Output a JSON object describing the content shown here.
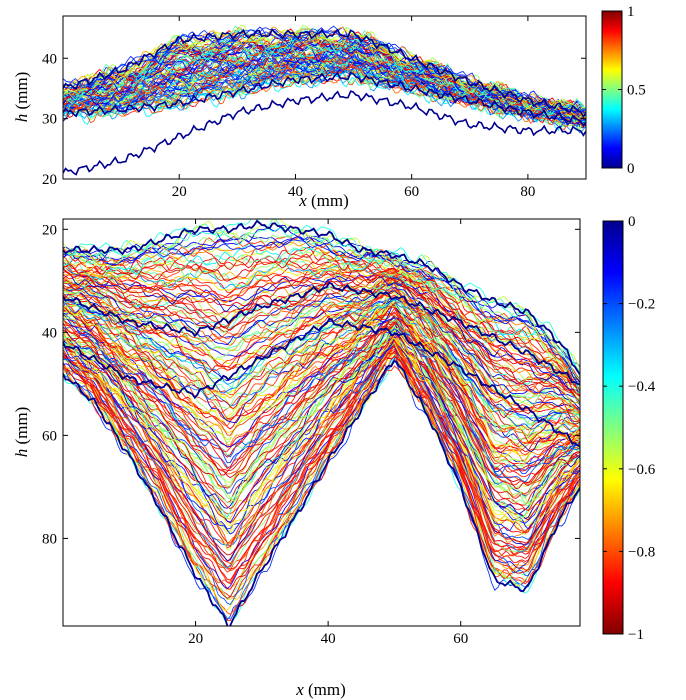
{
  "chart_data": [
    {
      "type": "line",
      "panel": "top",
      "xlabel_var": "x",
      "xlabel_unit": " (mm)",
      "ylabel_var": "h",
      "ylabel_unit": " (mm)",
      "xlim": [
        0,
        90
      ],
      "ylim": [
        20,
        47
      ],
      "y_reversed": false,
      "xticks": [
        20,
        40,
        60,
        80
      ],
      "yticks": [
        20,
        30,
        40
      ],
      "colorbar": {
        "colormap": "jet",
        "range": [
          0,
          1
        ],
        "ticks": [
          0,
          0.5,
          1
        ],
        "tick_labels": [
          "0",
          "0.5",
          "1"
        ]
      },
      "series": [
        {
          "x": [
            0,
            10,
            20,
            30,
            40,
            50,
            60,
            70,
            80,
            90
          ],
          "values": [
            31,
            31.5,
            32.5,
            34.5,
            36.5,
            37,
            35,
            33,
            31,
            29.5
          ]
        },
        {
          "x": [
            0,
            10,
            20,
            30,
            40,
            50,
            60,
            70,
            80,
            90
          ],
          "values": [
            35,
            38,
            43,
            44,
            44,
            44,
            40,
            36,
            33,
            31
          ]
        },
        {
          "x": [
            0,
            10,
            20,
            30,
            40,
            50,
            60,
            70,
            80,
            90
          ],
          "values": [
            21,
            23,
            27,
            31,
            33,
            34,
            32,
            29,
            28,
            28
          ]
        }
      ]
    },
    {
      "type": "line",
      "panel": "bottom",
      "xlabel_var": "x",
      "xlabel_unit": " (mm)",
      "ylabel_var": "h",
      "ylabel_unit": " (mm)",
      "xlim": [
        0,
        78
      ],
      "ylim": [
        97,
        18
      ],
      "y_reversed": true,
      "xticks": [
        20,
        40,
        60
      ],
      "yticks": [
        20,
        40,
        60,
        80
      ],
      "colorbar": {
        "colormap": "jet",
        "range": [
          -1,
          0
        ],
        "ticks": [
          0,
          -0.2,
          -0.4,
          -0.6,
          -0.8,
          -1
        ],
        "tick_labels": [
          "0",
          "−0.2",
          "−0.4",
          "−0.6",
          "−0.8",
          "−1"
        ]
      },
      "series": [
        {
          "x": [
            0,
            5,
            10,
            15,
            20,
            25,
            30,
            35,
            40,
            45,
            50,
            55,
            60,
            65,
            70,
            75,
            78
          ],
          "values": [
            48,
            54,
            64,
            75,
            87,
            97,
            86,
            76,
            65,
            55,
            45,
            56,
            70,
            88,
            90,
            76,
            70
          ]
        },
        {
          "x": [
            0,
            5,
            10,
            15,
            20,
            25,
            30,
            35,
            40,
            45,
            50,
            55,
            60,
            65,
            70,
            75,
            78
          ],
          "values": [
            24,
            24,
            24,
            22,
            20,
            20,
            19,
            20,
            21,
            24,
            25,
            27,
            31,
            34,
            36,
            42,
            48
          ]
        },
        {
          "x": [
            0,
            10,
            20,
            30,
            40,
            50,
            60,
            70,
            78
          ],
          "values": [
            42,
            49,
            52,
            45,
            38,
            40,
            47,
            55,
            62
          ]
        },
        {
          "x": [
            0,
            10,
            20,
            30,
            40,
            50,
            60,
            70,
            78
          ],
          "values": [
            33,
            38,
            40,
            35,
            31,
            33,
            38,
            44,
            50
          ]
        }
      ]
    }
  ]
}
